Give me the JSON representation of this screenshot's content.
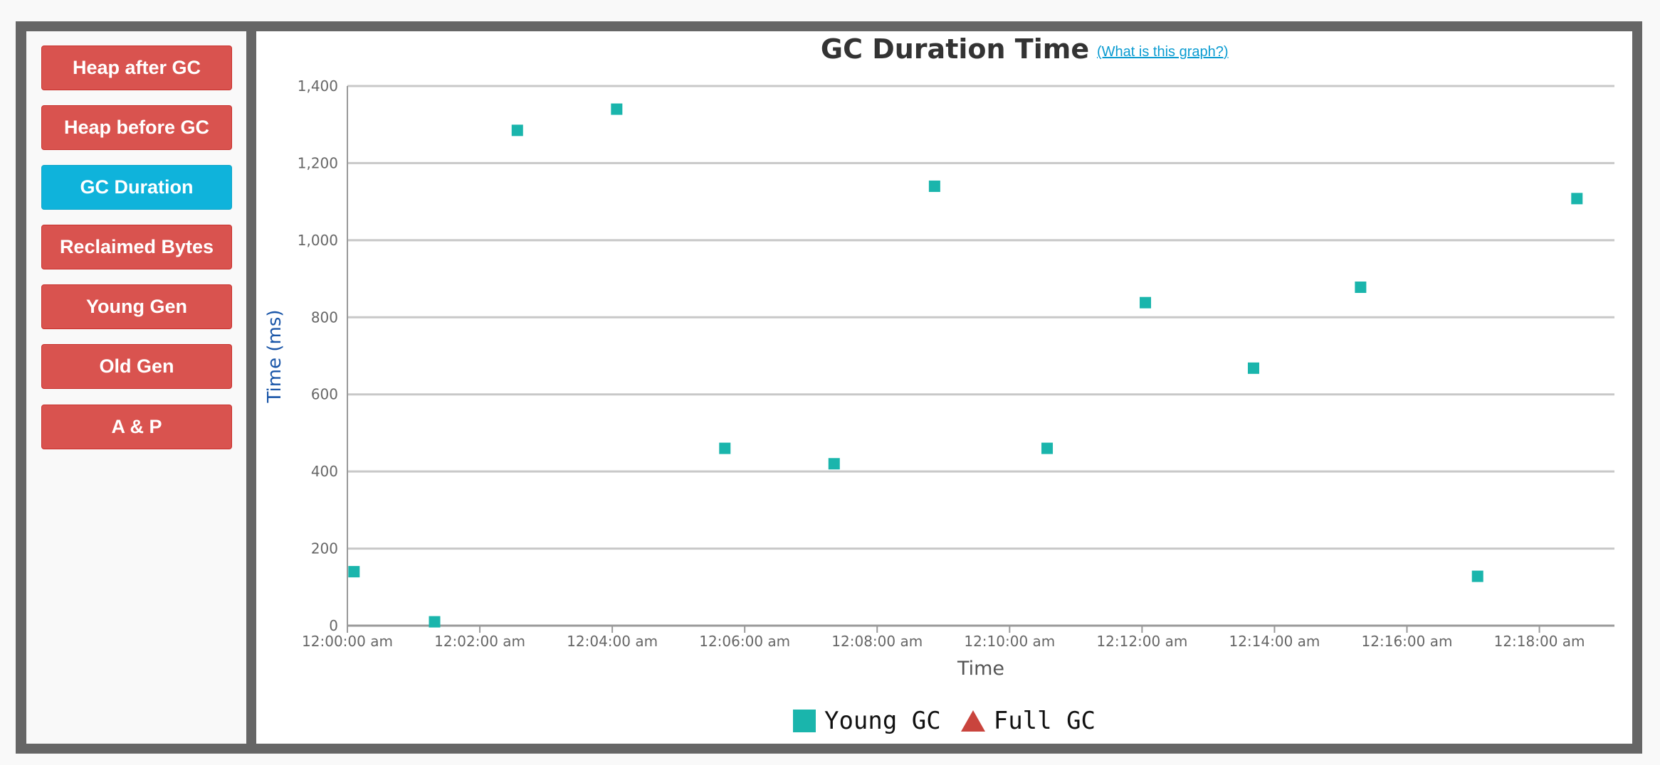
{
  "sidebar": {
    "items": [
      {
        "label": "Heap after GC",
        "active": false
      },
      {
        "label": "Heap before GC",
        "active": false
      },
      {
        "label": "GC Duration",
        "active": true
      },
      {
        "label": "Reclaimed Bytes",
        "active": false
      },
      {
        "label": "Young Gen",
        "active": false
      },
      {
        "label": "Old Gen",
        "active": false
      },
      {
        "label": "A & P",
        "active": false
      }
    ]
  },
  "help_link": "(What is this graph?)",
  "colors": {
    "active_button": "#0fb3db",
    "inactive_button": "#d9534f",
    "young_gc": "#1ab5ac",
    "full_gc": "#c9443d",
    "ylabel": "#1a56a8"
  },
  "chart_data": {
    "type": "scatter",
    "title": "GC Duration Time",
    "xlabel": "Time",
    "ylabel": "Time (ms)",
    "ylim": [
      0,
      1400
    ],
    "yticks": [
      0,
      200,
      400,
      600,
      800,
      1000,
      1200,
      1400
    ],
    "ytick_labels": [
      "0",
      "200",
      "400",
      "600",
      "800",
      "1,000",
      "1,200",
      "1,400"
    ],
    "xlim": [
      "12:00:00 am",
      "12:19:08 am"
    ],
    "xticks": [
      "12:00:00 am",
      "12:02:00 am",
      "12:04:00 am",
      "12:06:00 am",
      "12:08:00 am",
      "12:10:00 am",
      "12:12:00 am",
      "12:14:00 am",
      "12:16:00 am",
      "12:18:00 am"
    ],
    "grid": true,
    "legend_position": "bottom-center",
    "series": [
      {
        "name": "Young GC",
        "marker": "square",
        "x": [
          "12:00:06 am",
          "12:01:19 am",
          "12:02:34 am",
          "12:04:04 am",
          "12:05:42 am",
          "12:07:21 am",
          "12:08:52 am",
          "12:10:34 am",
          "12:12:03 am",
          "12:13:41 am",
          "12:15:18 am",
          "12:17:04 am",
          "12:18:34 am"
        ],
        "y": [
          140,
          10,
          1285,
          1340,
          460,
          420,
          1140,
          460,
          838,
          668,
          878,
          128,
          1108
        ]
      },
      {
        "name": "Full GC",
        "marker": "triangle",
        "x": [],
        "y": []
      }
    ]
  }
}
